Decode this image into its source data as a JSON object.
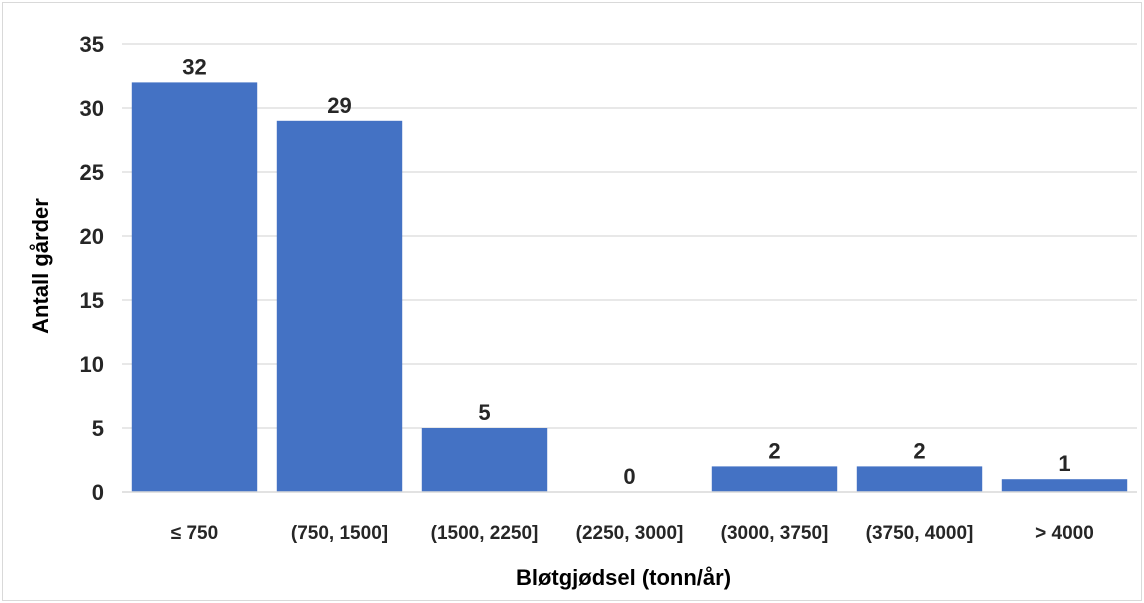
{
  "chart_data": {
    "type": "bar",
    "title": "",
    "xlabel": "Bløtgjødsel (tonn/år)",
    "ylabel": "Antall gårder",
    "categories": [
      "≤ 750",
      "(750, 1500]",
      "(1500, 2250]",
      "(2250, 3000]",
      "(3000, 3750]",
      "(3750, 4000]",
      "> 4000"
    ],
    "values": [
      32,
      29,
      5,
      0,
      2,
      2,
      1
    ],
    "ylim": [
      0,
      35
    ],
    "yticks": [
      0,
      5,
      10,
      15,
      20,
      25,
      30,
      35
    ],
    "grid": true,
    "legend": "none",
    "bar_color": "#4472C4",
    "grid_color": "#d9d9d9"
  }
}
